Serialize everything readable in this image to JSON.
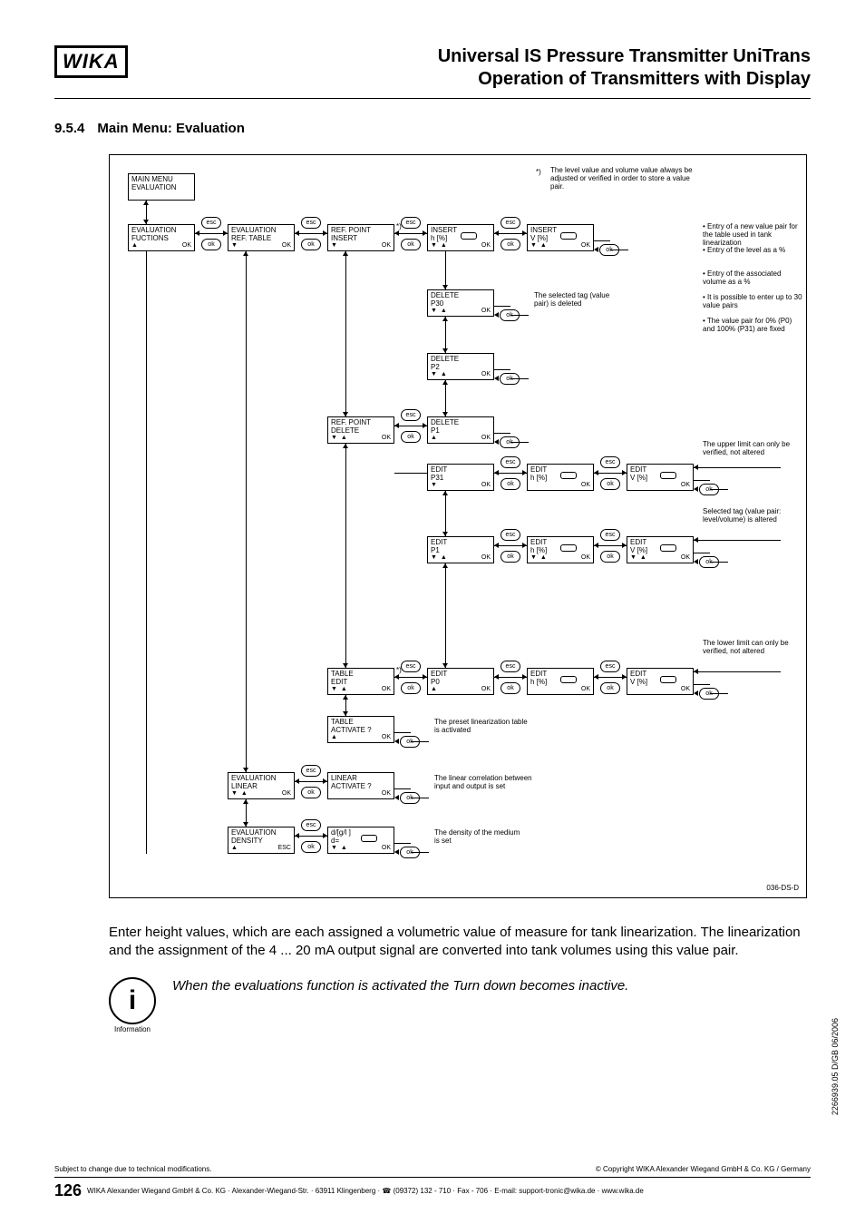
{
  "header": {
    "logo": "WIKA",
    "title_line1": "Universal IS Pressure Transmitter UniTrans",
    "title_line2": "Operation of Transmitters with Display"
  },
  "section": {
    "number": "9.5.4",
    "title": "Main Menu: Evaluation"
  },
  "diagram": {
    "id": "036-DS-D",
    "star_note": "The level value and volume value always be adjusted or verified in order to store a value pair.",
    "nodes": {
      "main_menu": {
        "l1": "MAIN MENU",
        "l2": "EVALUATION",
        "arrows": "",
        "ok": ""
      },
      "eval_funcs": {
        "l1": "EVALUATION",
        "l2": "FUCTIONS",
        "arrows": "▲",
        "ok": "OK"
      },
      "eval_reftable": {
        "l1": "EVALUATION",
        "l2": "REF. TABLE",
        "arrows": "▼",
        "ok": "OK"
      },
      "refpt_insert": {
        "l1": "REF. POINT",
        "l2": "INSERT",
        "arrows": "▼",
        "ok": "OK",
        "star": "*)"
      },
      "insert_h": {
        "l1": "INSERT",
        "l2": "h [%]",
        "arrows": "▼ ▲",
        "ok": "OK",
        "ival": true
      },
      "insert_v": {
        "l1": "INSERT",
        "l2": "V [%]",
        "arrows": "▼ ▲",
        "ok": "OK",
        "ival": true
      },
      "delete_p30": {
        "l1": "DELETE",
        "l2": "P30",
        "arrows": "▼ ▲",
        "ok": "OK"
      },
      "delete_p2": {
        "l1": "DELETE",
        "l2": "P2",
        "arrows": "▼ ▲",
        "ok": "OK"
      },
      "refpt_delete": {
        "l1": "REF. POINT",
        "l2": "DELETE",
        "arrows": "▼ ▲",
        "ok": "OK"
      },
      "delete_p1": {
        "l1": "DELETE",
        "l2": "P1",
        "arrows": "▲",
        "ok": "OK"
      },
      "edit_p31": {
        "l1": "EDIT",
        "l2": "P31",
        "arrows": "▼",
        "ok": "OK"
      },
      "edit_h31": {
        "l1": "EDIT",
        "l2": "h [%]",
        "arrows": "",
        "ok": "OK",
        "ival": true
      },
      "edit_v31": {
        "l1": "EDIT",
        "l2": "V [%]",
        "arrows": "",
        "ok": "OK",
        "ival": true
      },
      "edit_p1": {
        "l1": "EDIT",
        "l2": "P1",
        "arrows": "▼ ▲",
        "ok": "OK"
      },
      "edit_h1": {
        "l1": "EDIT",
        "l2": "h [%]",
        "arrows": "▼ ▲",
        "ok": "OK",
        "ival": true
      },
      "edit_v1": {
        "l1": "EDIT",
        "l2": "V [%]",
        "arrows": "▼ ▲",
        "ok": "OK",
        "ival": true
      },
      "table_edit": {
        "l1": "TABLE",
        "l2": "EDIT",
        "arrows": "▼ ▲",
        "ok": "OK",
        "star": "*)"
      },
      "edit_p0": {
        "l1": "EDIT",
        "l2": "P0",
        "arrows": "▲",
        "ok": "OK"
      },
      "edit_h0": {
        "l1": "EDIT",
        "l2": "h [%]",
        "arrows": "",
        "ok": "OK",
        "ival": true
      },
      "edit_v0": {
        "l1": "EDIT",
        "l2": "V [%]",
        "arrows": "",
        "ok": "OK",
        "ival": true
      },
      "table_act": {
        "l1": "TABLE",
        "l2": "ACTIVATE ?",
        "arrows": "▲",
        "ok": "OK"
      },
      "eval_linear": {
        "l1": "EVALUATION",
        "l2": "LINEAR",
        "arrows": "▼ ▲",
        "ok": "OK"
      },
      "linear_act": {
        "l1": "LINEAR",
        "l2": "ACTIVATE ?",
        "arrows": "",
        "ok": "OK"
      },
      "eval_density": {
        "l1": "EVALUATION",
        "l2": "DENSITY",
        "arrows": "▲",
        "ok": "ESC"
      },
      "density_val": {
        "l1": "d/[g/l ]",
        "l2": "d=",
        "arrows": "▼ ▲",
        "ok": "OK",
        "ival": true
      }
    },
    "side_notes": {
      "insert_bullets": [
        "Entry of a new value pair for the table used in tank linearization",
        "Entry of the level as a %",
        "Entry of the associated volume as a %",
        "It is possible to enter up to 30 value pairs",
        "The value pair for 0% (P0) and 100% (P31) are fixed"
      ],
      "delete_p30": "The selected tag (value pair) is deleted",
      "upper_limit": "The upper limit can only be verified, not altered",
      "selected_tag": "Selected tag (value pair: level/volume) is altered",
      "lower_limit": "The lower limit can only be verified, not altered",
      "table_act": "The preset linearization table is activated",
      "linear_act": "The linear correlation between input and output is set",
      "density": "The density of the medium is set"
    },
    "btn": {
      "esc": "esc",
      "ok": "ok"
    },
    "layout": {
      "cols": {
        "c1": 20,
        "c2": 130,
        "c3": 240,
        "c4": 350,
        "c5": 460,
        "c6": 570
      },
      "rows": {
        "r0": 20,
        "r1": 76,
        "r2": 148,
        "r3": 218,
        "r4": 288,
        "r5": 340,
        "r6": 420,
        "r7": 500,
        "r8": 565,
        "r9": 618,
        "r10": 680,
        "r11": 740
      }
    }
  },
  "body": {
    "paragraph": "Enter height values, which are each assigned a volumetric value of measure for tank linearization. The linearization and the assignment of the 4 ... 20 mA output signal are converted into tank volumes using this value pair.",
    "note": "When the evaluations function is activated the Turn down becomes inactive."
  },
  "doc_id_vertical": "2266939.05 D/GB 06/2006",
  "footer": {
    "left_small": "Subject to change due to technical modifications.",
    "right_small": "© Copyright WIKA Alexander Wiegand GmbH & Co. KG / Germany",
    "page": "126",
    "address": "WIKA Alexander Wiegand GmbH & Co. KG · Alexander-Wiegand-Str. · 63911 Klingenberg · ☎ (09372) 132 - 710 · Fax - 706 · E-mail: support-tronic@wika.de · www.wika.de"
  }
}
